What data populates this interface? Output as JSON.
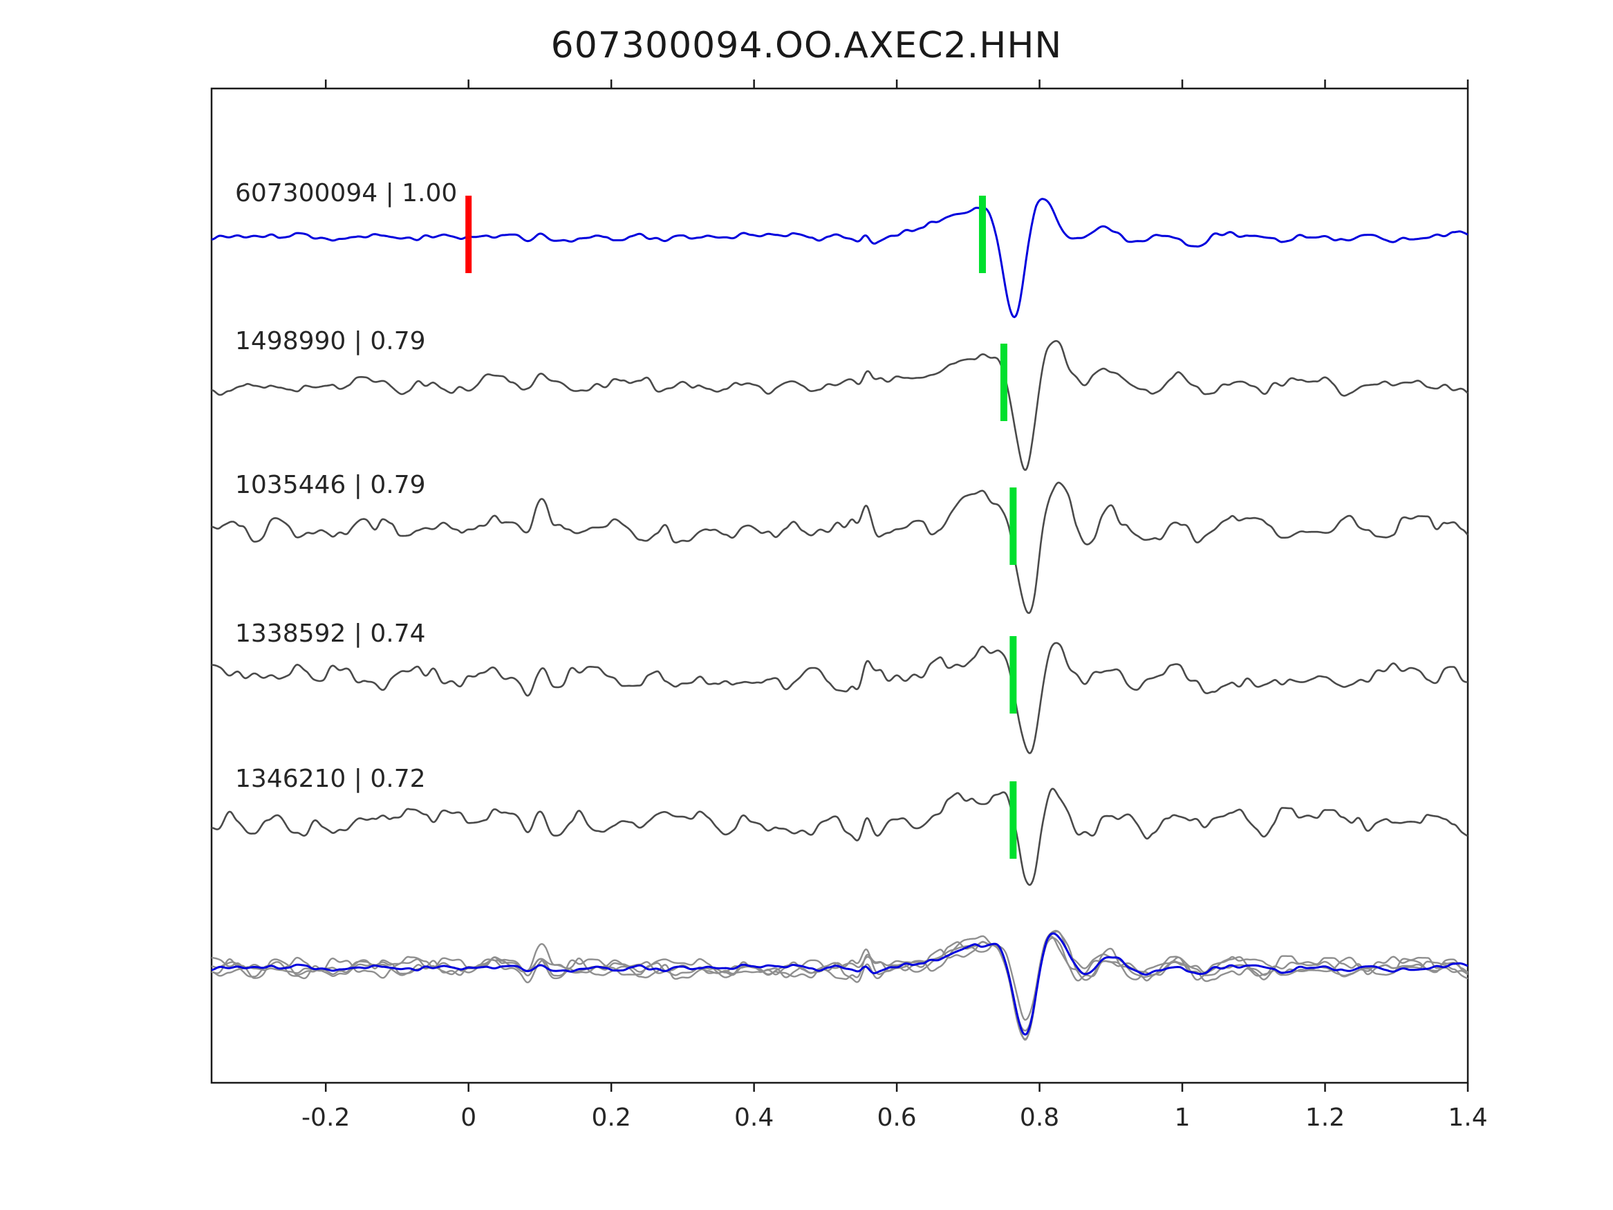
{
  "chart_data": {
    "type": "line",
    "title": "607300094.OO.AXEC2.HHN",
    "xlabel": "",
    "ylabel": "",
    "xlim": [
      -0.36,
      1.4
    ],
    "x_tick_values": [
      -0.2,
      0,
      0.2,
      0.4,
      0.6,
      0.8,
      1,
      1.2,
      1.4
    ],
    "x_tick_labels": [
      "-0.2",
      "0",
      "0.2",
      "0.4",
      "0.6",
      "0.8",
      "1",
      "1.2",
      "1.4"
    ],
    "grid": false,
    "legend_position": "none",
    "background": "#ffffff",
    "axis_color": "#1a1a1a",
    "markers": {
      "pick_color": "#00e02e",
      "origin_color": "#ff0000"
    },
    "traces": [
      {
        "label": "607300094 | 1.00",
        "station_id": "607300094",
        "correlation": 1.0,
        "color": "#0000dd",
        "pick_time": 0.72,
        "origin_time": 0,
        "event_time": 0.765,
        "event_amp": 120,
        "noise_amp": 7
      },
      {
        "label": "1498990 | 0.79",
        "station_id": "1498990",
        "correlation": 0.79,
        "color": "#4a4a4a",
        "pick_time": 0.75,
        "event_time": 0.78,
        "event_amp": 120,
        "noise_amp": 11
      },
      {
        "label": "1035446 | 0.79",
        "station_id": "1035446",
        "correlation": 0.79,
        "color": "#4a4a4a",
        "pick_time": 0.763,
        "event_time": 0.785,
        "event_amp": 112,
        "noise_amp": 19
      },
      {
        "label": "1338592 | 0.74",
        "station_id": "1338592",
        "correlation": 0.74,
        "color": "#4a4a4a",
        "pick_time": 0.763,
        "event_time": 0.785,
        "event_amp": 120,
        "noise_amp": 16
      },
      {
        "label": "1346210 | 0.72",
        "station_id": "1346210",
        "correlation": 0.72,
        "color": "#4a4a4a",
        "pick_time": 0.763,
        "event_time": 0.785,
        "event_amp": 104,
        "noise_amp": 17
      }
    ],
    "overlay": {
      "description": "All five traces overlaid, aligned on the pick",
      "gray_color": "#8f8f8f",
      "blue_color": "#0000dd",
      "aligned_event_time": 0.78,
      "amp_scale": 0.85,
      "noise_scale": 0.8
    }
  }
}
